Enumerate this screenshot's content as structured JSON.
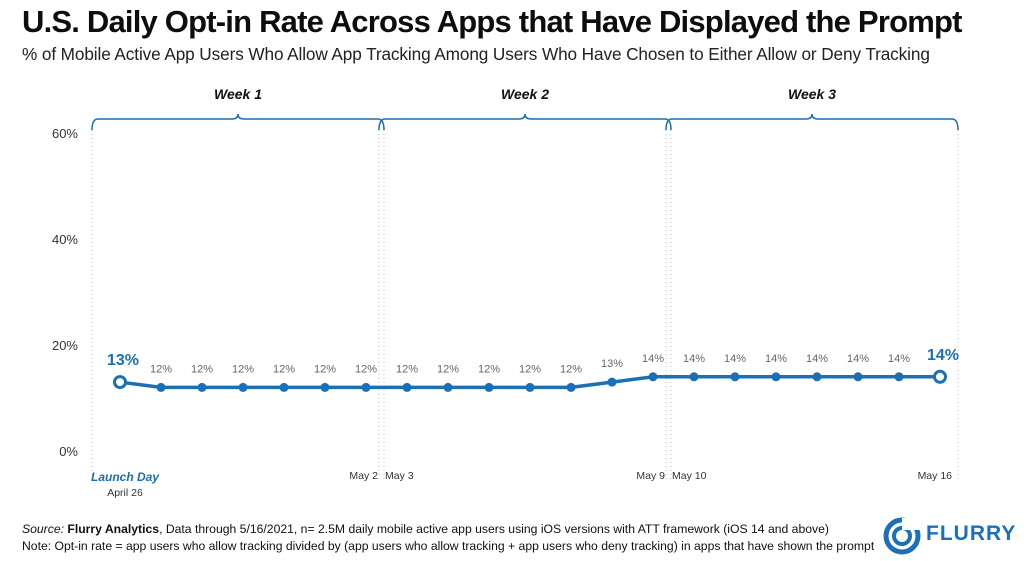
{
  "header": {
    "title": "U.S. Daily Opt-in Rate Across Apps that Have Displayed the Prompt",
    "subtitle": "% of Mobile Active App Users Who Allow App Tracking Among Users Who Have Chosen to Either Allow or Deny Tracking"
  },
  "chart_data": {
    "type": "line",
    "title": "U.S. Daily Opt-in Rate Across Apps that Have Displayed the Prompt",
    "subtitle": "% of Mobile Active App Users Who Allow App Tracking Among Users Who Have Chosen to Either Allow or Deny Tracking",
    "xlabel": "",
    "ylabel": "",
    "y_ticks": [
      "0%",
      "20%",
      "40%",
      "60%"
    ],
    "ylim": [
      0,
      60
    ],
    "grid": false,
    "series": [
      {
        "values": [
          13,
          12,
          12,
          12,
          12,
          12,
          12,
          12,
          12,
          12,
          12,
          12,
          13,
          14,
          14,
          14,
          14,
          14,
          14,
          14,
          14
        ],
        "labels": [
          "13%",
          "12%",
          "12%",
          "12%",
          "12%",
          "12%",
          "12%",
          "12%",
          "12%",
          "12%",
          "12%",
          "12%",
          "13%",
          "14%",
          "14%",
          "14%",
          "14%",
          "14%",
          "14%",
          "14%",
          "14%"
        ]
      }
    ],
    "x_labels": [
      {
        "index": 0,
        "text": "Launch Day",
        "sub": "April 26"
      },
      {
        "index": 6,
        "text": "May 2"
      },
      {
        "index": 7,
        "text": "May 3"
      },
      {
        "index": 13,
        "text": "May 9"
      },
      {
        "index": 14,
        "text": "May 10"
      },
      {
        "index": 20,
        "text": "May 16"
      }
    ],
    "weeks": [
      {
        "label": "Week 1",
        "start": 0,
        "end": 6
      },
      {
        "label": "Week 2",
        "start": 7,
        "end": 13
      },
      {
        "label": "Week 3",
        "start": 14,
        "end": 20
      }
    ],
    "colors": {
      "line": "#1a6fb5",
      "label": "#666666",
      "highlight": "#1a6fb5",
      "axis": "#333333"
    }
  },
  "footer": {
    "source_prefix": "Source: ",
    "source_name": "Flurry Analytics",
    "source_rest": ", Data through 5/16/2021, n= 2.5M daily mobile active app users using iOS versions with ATT framework (iOS 14 and above)",
    "note": "Note: Opt-in rate = app users who allow tracking divided by (app users who allow tracking + app users who deny tracking) in apps that have shown the prompt"
  },
  "logo": {
    "text": "FLURRY",
    "icon": "flurry-swirl-icon"
  }
}
